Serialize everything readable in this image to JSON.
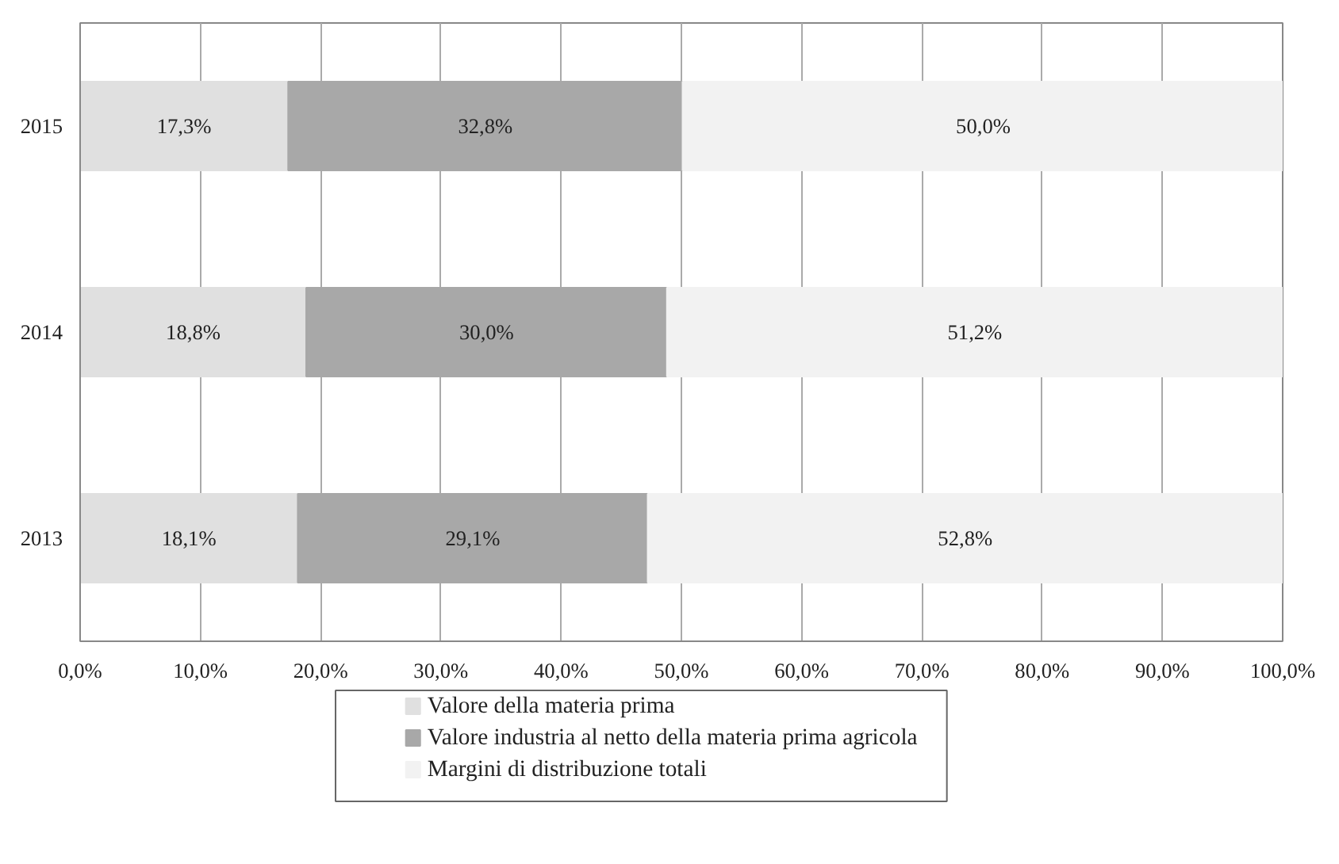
{
  "chart_data": {
    "type": "bar",
    "orientation": "horizontal",
    "stacked": true,
    "categories": [
      "2015",
      "2014",
      "2013"
    ],
    "series": [
      {
        "name": "Valore della materia prima",
        "color": "#e0e0e0",
        "values": [
          17.3,
          18.8,
          18.1
        ],
        "value_labels": [
          "17,3%",
          "18,8%",
          "18,1%"
        ]
      },
      {
        "name": "Valore industria al netto della materia prima agricola",
        "color": "#a8a8a8",
        "values": [
          32.8,
          30.0,
          29.1
        ],
        "value_labels": [
          "32,8%",
          "30,0%",
          "29,1%"
        ]
      },
      {
        "name": "Margini di distribuzione totali",
        "color": "#f2f2f2",
        "values": [
          50.0,
          51.2,
          52.8
        ],
        "value_labels": [
          "50,0%",
          "51,2%",
          "52,8%"
        ]
      }
    ],
    "xlim": [
      0,
      100
    ],
    "xticks": [
      {
        "value": 0,
        "label": "0,0%"
      },
      {
        "value": 10,
        "label": "10,0%"
      },
      {
        "value": 20,
        "label": "20,0%"
      },
      {
        "value": 30,
        "label": "30,0%"
      },
      {
        "value": 40,
        "label": "40,0%"
      },
      {
        "value": 50,
        "label": "50,0%"
      },
      {
        "value": 60,
        "label": "60,0%"
      },
      {
        "value": 70,
        "label": "70,0%"
      },
      {
        "value": 80,
        "label": "80,0%"
      },
      {
        "value": 90,
        "label": "90,0%"
      },
      {
        "value": 100,
        "label": "100,0%"
      }
    ],
    "grid": "x",
    "legend": "bottom"
  }
}
